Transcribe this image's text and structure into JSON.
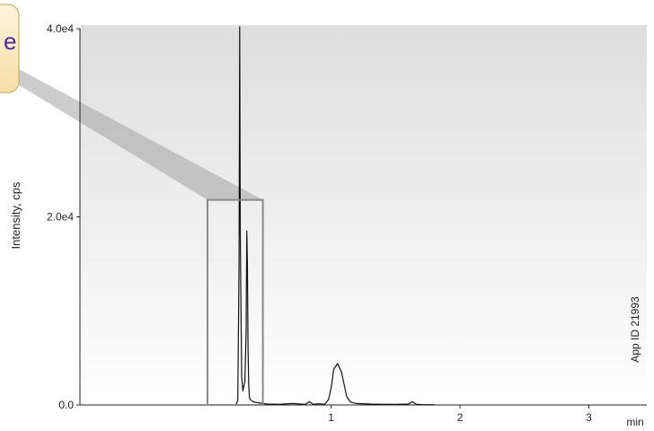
{
  "chart_data": {
    "type": "line",
    "xlabel": "",
    "ylabel": "Intensity, cps",
    "xlim": [
      -0.95,
      3.45
    ],
    "ylim": [
      0,
      40000
    ],
    "x_ticks": [
      {
        "value": 1,
        "label": "1"
      },
      {
        "value": 2,
        "label": "2"
      },
      {
        "value": 3,
        "label": "3"
      }
    ],
    "x_unit_label": "min",
    "y_ticks": [
      {
        "value": 0,
        "label": "0.0"
      },
      {
        "value": 20000,
        "label": "2.0e4"
      },
      {
        "value": 40000,
        "label": "4.0e4"
      }
    ],
    "annotation": "App ID 21993",
    "zoom_box": {
      "x_start": 0.04,
      "x_end": 0.47,
      "y_start": 0,
      "y_end": 21800
    },
    "callout_partial_text": "e",
    "series": [
      {
        "x": [
          0.04,
          0.2,
          0.26,
          0.275,
          0.285,
          0.29,
          0.295,
          0.305,
          0.315,
          0.33,
          0.34,
          0.345,
          0.35,
          0.355,
          0.36,
          0.365,
          0.37,
          0.38,
          0.4,
          0.45,
          0.5,
          0.6,
          0.7,
          0.8,
          0.83,
          0.86,
          0.9,
          0.95,
          0.98,
          1.0,
          1.02,
          1.05,
          1.08,
          1.12,
          1.15,
          1.2,
          1.3,
          1.4,
          1.5,
          1.6,
          1.63,
          1.66,
          1.7,
          1.8
        ],
        "y": [
          0,
          0,
          0,
          500,
          15000,
          40200,
          18000,
          3000,
          1500,
          2500,
          8000,
          18500,
          15000,
          6000,
          2000,
          900,
          600,
          500,
          300,
          200,
          100,
          80,
          150,
          60,
          350,
          80,
          120,
          80,
          600,
          1800,
          3800,
          4400,
          3500,
          900,
          300,
          150,
          100,
          80,
          60,
          100,
          350,
          80,
          40,
          30
        ]
      }
    ]
  }
}
